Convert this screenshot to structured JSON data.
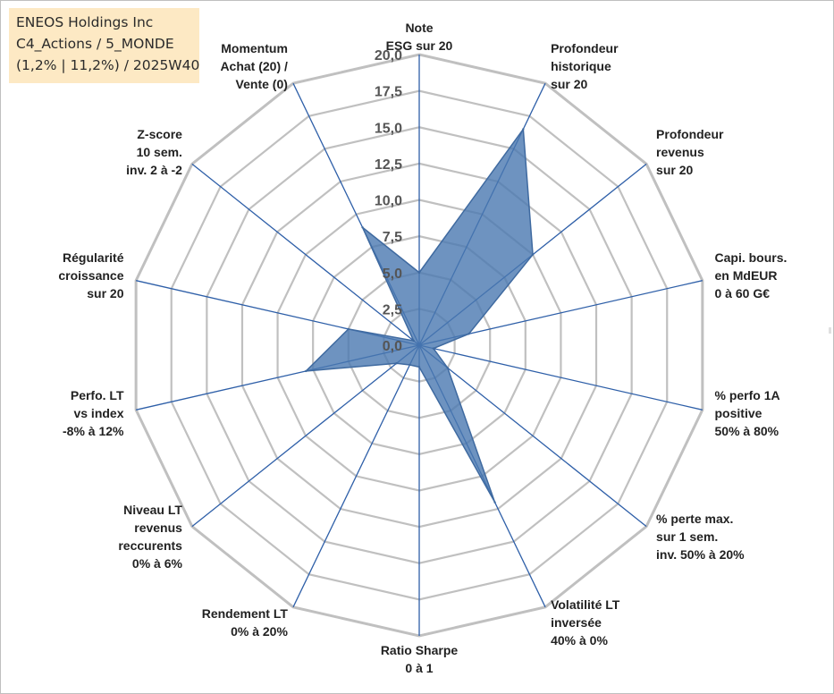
{
  "title": {
    "line1": "ENEOS Holdings Inc",
    "line2": "C4_Actions / 5_MONDE",
    "line3": "(1,2% | 11,2%) / 2025W40"
  },
  "chart_data": {
    "type": "radar",
    "range": [
      0,
      20
    ],
    "tick_labels": [
      "0,0",
      "2,5",
      "5,0",
      "7,5",
      "10,0",
      "12,5",
      "15,0",
      "17,5",
      "20,0"
    ],
    "axes": [
      {
        "lines": [
          "Note",
          "ESG sur 20"
        ]
      },
      {
        "lines": [
          "Profondeur",
          "historique",
          "sur 20"
        ]
      },
      {
        "lines": [
          "Profondeur",
          "revenus",
          "sur 20"
        ]
      },
      {
        "lines": [
          "Capi. bours.",
          "en MdEUR",
          "0 à 60 G€"
        ]
      },
      {
        "lines": [
          "% perfo 1A",
          "positive",
          "50% à 80%"
        ]
      },
      {
        "lines": [
          "% perte max.",
          "sur 1 sem.",
          "inv. 50% à 20%"
        ]
      },
      {
        "lines": [
          "Volatilité LT",
          "inversée",
          "40% à 0%"
        ]
      },
      {
        "lines": [
          "Ratio Sharpe",
          "0 à 1"
        ]
      },
      {
        "lines": [
          "Rendement LT",
          "0% à 20%"
        ]
      },
      {
        "lines": [
          "Niveau LT",
          "revenus",
          "reccurents",
          "0% à 6%"
        ]
      },
      {
        "lines": [
          "Perfo. LT",
          "vs index",
          "-8% à 12%"
        ]
      },
      {
        "lines": [
          "Régularité",
          "croissance",
          "sur 20"
        ]
      },
      {
        "lines": [
          "Z-score",
          "10 sem.",
          "inv. 2 à -2"
        ]
      },
      {
        "lines": [
          "Momentum",
          "Achat (20) /",
          "Vente (0)"
        ]
      }
    ],
    "values": [
      5.0,
      16.5,
      10.0,
      3.5,
      1.0,
      2.5,
      12.0,
      1.5,
      1.5,
      2.0,
      8.0,
      5.0,
      0.5,
      9.0
    ],
    "colors": {
      "fill": "#4a78b0",
      "stroke": "#3f6aa0",
      "grid": "#c0c0c0",
      "axis": "#2e5fa8"
    }
  }
}
